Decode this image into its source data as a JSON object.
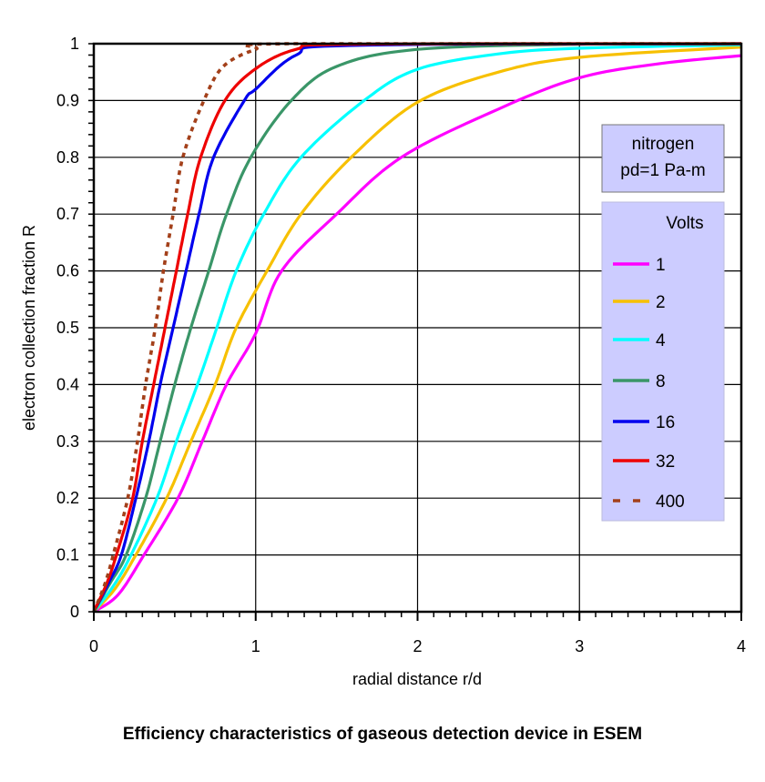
{
  "chart_data": {
    "type": "line",
    "title": "Efficiency characteristics of gaseous detection device in ESEM",
    "xlabel": "radial distance r/d",
    "ylabel": "electron collection fraction R",
    "xlim": [
      0,
      4
    ],
    "ylim": [
      0,
      1
    ],
    "x_ticks": [
      "0",
      "1",
      "2",
      "3",
      "4"
    ],
    "y_ticks": [
      "0",
      "0.1",
      "0.2",
      "0.3",
      "0.4",
      "0.5",
      "0.6",
      "0.7",
      "0.8",
      "0.9",
      "1"
    ],
    "grid": true,
    "annotation": [
      "nitrogen",
      "pd=1 Pa-m"
    ],
    "legend": {
      "title": "Volts",
      "placement": "right"
    },
    "series": [
      {
        "name": "1",
        "color": "#ff00ff",
        "dash": false,
        "points": [
          [
            0,
            0
          ],
          [
            0.15,
            0.03
          ],
          [
            0.31,
            0.1
          ],
          [
            0.52,
            0.2
          ],
          [
            0.67,
            0.3
          ],
          [
            0.82,
            0.4
          ],
          [
            1.0,
            0.49
          ],
          [
            1.16,
            0.6
          ],
          [
            1.5,
            0.7
          ],
          [
            1.9,
            0.8
          ],
          [
            2.5,
            0.885
          ],
          [
            3,
            0.94
          ],
          [
            3.5,
            0.965
          ],
          [
            4,
            0.979
          ]
        ]
      },
      {
        "name": "2",
        "color": "#f7c000",
        "dash": false,
        "points": [
          [
            0,
            0
          ],
          [
            0.13,
            0.04
          ],
          [
            0.26,
            0.1
          ],
          [
            0.45,
            0.2
          ],
          [
            0.6,
            0.3
          ],
          [
            0.75,
            0.4
          ],
          [
            0.88,
            0.5
          ],
          [
            1.07,
            0.6
          ],
          [
            1.28,
            0.7
          ],
          [
            1.59,
            0.8
          ],
          [
            2,
            0.897
          ],
          [
            2.5,
            0.95
          ],
          [
            3,
            0.976
          ],
          [
            4,
            0.994
          ]
        ]
      },
      {
        "name": "4",
        "color": "#00ffff",
        "dash": false,
        "points": [
          [
            0,
            0
          ],
          [
            0.12,
            0.045
          ],
          [
            0.23,
            0.1
          ],
          [
            0.39,
            0.2
          ],
          [
            0.51,
            0.3
          ],
          [
            0.64,
            0.4
          ],
          [
            0.76,
            0.5
          ],
          [
            0.88,
            0.6
          ],
          [
            1.05,
            0.7
          ],
          [
            1.28,
            0.8
          ],
          [
            1.67,
            0.9
          ],
          [
            2,
            0.955
          ],
          [
            2.5,
            0.982
          ],
          [
            3,
            0.992
          ],
          [
            4,
            0.998
          ]
        ]
      },
      {
        "name": "8",
        "color": "#3a9668",
        "dash": false,
        "points": [
          [
            0,
            0
          ],
          [
            0.1,
            0.05
          ],
          [
            0.2,
            0.1
          ],
          [
            0.32,
            0.2
          ],
          [
            0.41,
            0.3
          ],
          [
            0.5,
            0.4
          ],
          [
            0.6,
            0.5
          ],
          [
            0.71,
            0.6
          ],
          [
            0.82,
            0.7
          ],
          [
            0.97,
            0.8
          ],
          [
            1.22,
            0.9
          ],
          [
            1.5,
            0.96
          ],
          [
            2,
            0.99
          ],
          [
            3,
            0.999
          ],
          [
            4,
            1.0
          ]
        ]
      },
      {
        "name": "16",
        "color": "#0000ee",
        "dash": false,
        "points": [
          [
            0,
            0
          ],
          [
            0.09,
            0.05
          ],
          [
            0.17,
            0.1
          ],
          [
            0.26,
            0.2
          ],
          [
            0.34,
            0.3
          ],
          [
            0.41,
            0.4
          ],
          [
            0.49,
            0.5
          ],
          [
            0.57,
            0.6
          ],
          [
            0.65,
            0.7
          ],
          [
            0.74,
            0.8
          ],
          [
            0.93,
            0.9
          ],
          [
            1.0,
            0.92
          ],
          [
            1.25,
            0.98
          ],
          [
            1.6,
            0.997
          ],
          [
            4,
            1.0
          ]
        ]
      },
      {
        "name": "32",
        "color": "#ee0000",
        "dash": false,
        "points": [
          [
            0,
            0
          ],
          [
            0.08,
            0.05
          ],
          [
            0.14,
            0.1
          ],
          [
            0.24,
            0.2
          ],
          [
            0.3,
            0.3
          ],
          [
            0.37,
            0.4
          ],
          [
            0.44,
            0.5
          ],
          [
            0.51,
            0.6
          ],
          [
            0.58,
            0.7
          ],
          [
            0.66,
            0.8
          ],
          [
            0.81,
            0.9
          ],
          [
            1.0,
            0.956
          ],
          [
            1.25,
            0.99
          ],
          [
            1.6,
            0.999
          ],
          [
            4,
            1.0
          ]
        ]
      },
      {
        "name": "400",
        "color": "#a3401a",
        "dash": true,
        "points": [
          [
            0,
            0
          ],
          [
            0.07,
            0.05
          ],
          [
            0.12,
            0.1
          ],
          [
            0.21,
            0.2
          ],
          [
            0.27,
            0.3
          ],
          [
            0.32,
            0.4
          ],
          [
            0.38,
            0.5
          ],
          [
            0.43,
            0.6
          ],
          [
            0.49,
            0.7
          ],
          [
            0.55,
            0.8
          ],
          [
            0.68,
            0.9
          ],
          [
            0.8,
            0.96
          ],
          [
            1.0,
            0.99
          ],
          [
            1.2,
            1.0
          ],
          [
            4,
            1.0
          ]
        ]
      }
    ]
  }
}
